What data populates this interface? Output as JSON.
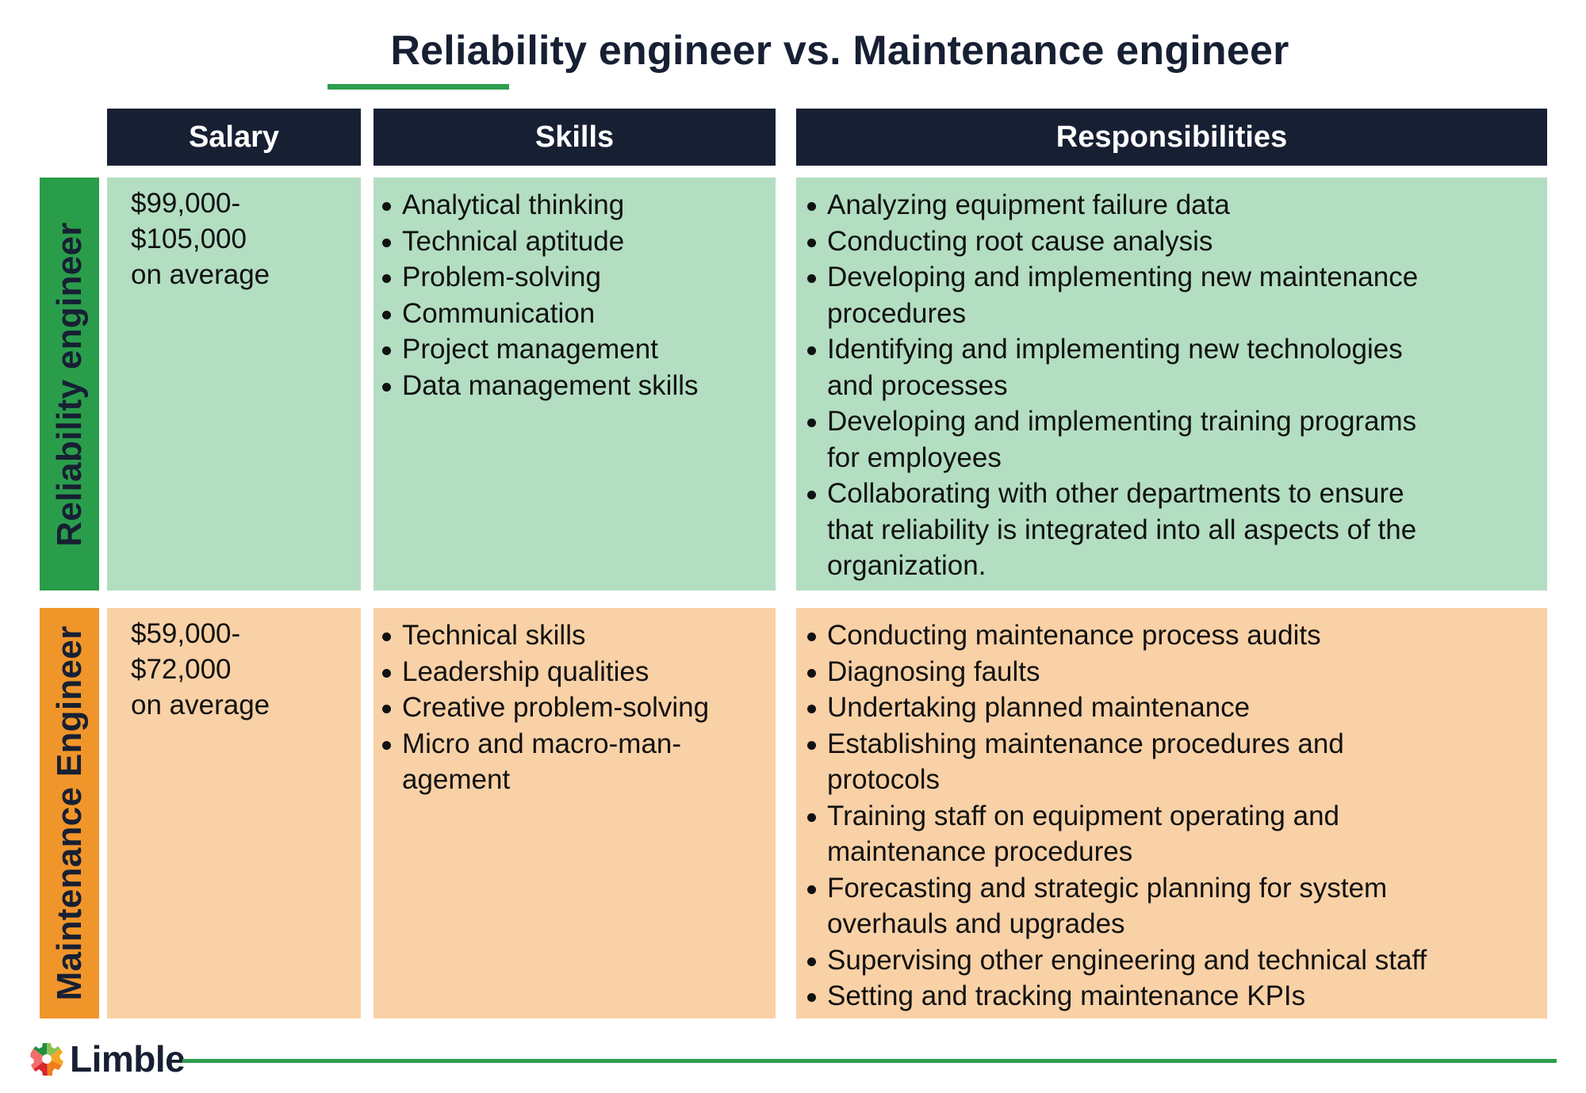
{
  "title": {
    "text": "Reliability engineer vs. Maintenance engineer",
    "underline_color": "#2e9e4f",
    "text_color": "#172033"
  },
  "headers": {
    "salary": "Salary",
    "skills": "Skills",
    "responsibilities": "Responsibilities"
  },
  "colors": {
    "header_bg": "#172033",
    "reliability_bar": "#2a9d4b",
    "reliability_cell": "#b3dec2",
    "maintenance_bar": "#f0952a",
    "maintenance_cell": "#f9d1a6"
  },
  "rows": [
    {
      "label": "Reliability engineer",
      "salary": [
        "$99,000-",
        "$105,000",
        "on average"
      ],
      "skills": [
        [
          "Analytical thinking"
        ],
        [
          "Technical aptitude"
        ],
        [
          "Problem-solving"
        ],
        [
          "Communication"
        ],
        [
          "Project management"
        ],
        [
          "Data management skills"
        ]
      ],
      "responsibilities": [
        [
          "Analyzing equipment failure data"
        ],
        [
          "Conducting root cause analysis"
        ],
        [
          "Developing and implementing new maintenance",
          "procedures"
        ],
        [
          "Identifying and implementing new technologies",
          "and processes"
        ],
        [
          "Developing and implementing training programs",
          "for employees"
        ],
        [
          "Collaborating with other departments to ensure",
          "that reliability is integrated into all aspects of the",
          "organization."
        ]
      ]
    },
    {
      "label": "Maintenance Engineer",
      "salary": [
        "$59,000-",
        "$72,000",
        "on average"
      ],
      "skills": [
        [
          "Technical skills"
        ],
        [
          "Leadership qualities"
        ],
        [
          "Creative problem-solving"
        ],
        [
          "Micro and macro-man-",
          "agement"
        ]
      ],
      "responsibilities": [
        [
          "Conducting maintenance process audits"
        ],
        [
          "Diagnosing faults"
        ],
        [
          "Undertaking planned maintenance"
        ],
        [
          "Establishing maintenance procedures and",
          "protocols"
        ],
        [
          "Training staff on equipment operating and",
          "maintenance procedures"
        ],
        [
          "Forecasting and strategic planning for system",
          "overhauls and upgrades"
        ],
        [
          "Supervising other engineering and technical staff"
        ],
        [
          "Setting and tracking maintenance KPIs"
        ]
      ]
    }
  ],
  "footer": {
    "brand": "Limble",
    "logo_icon": "multicolor-gear-icon",
    "line_color": "#2e9e4f"
  }
}
